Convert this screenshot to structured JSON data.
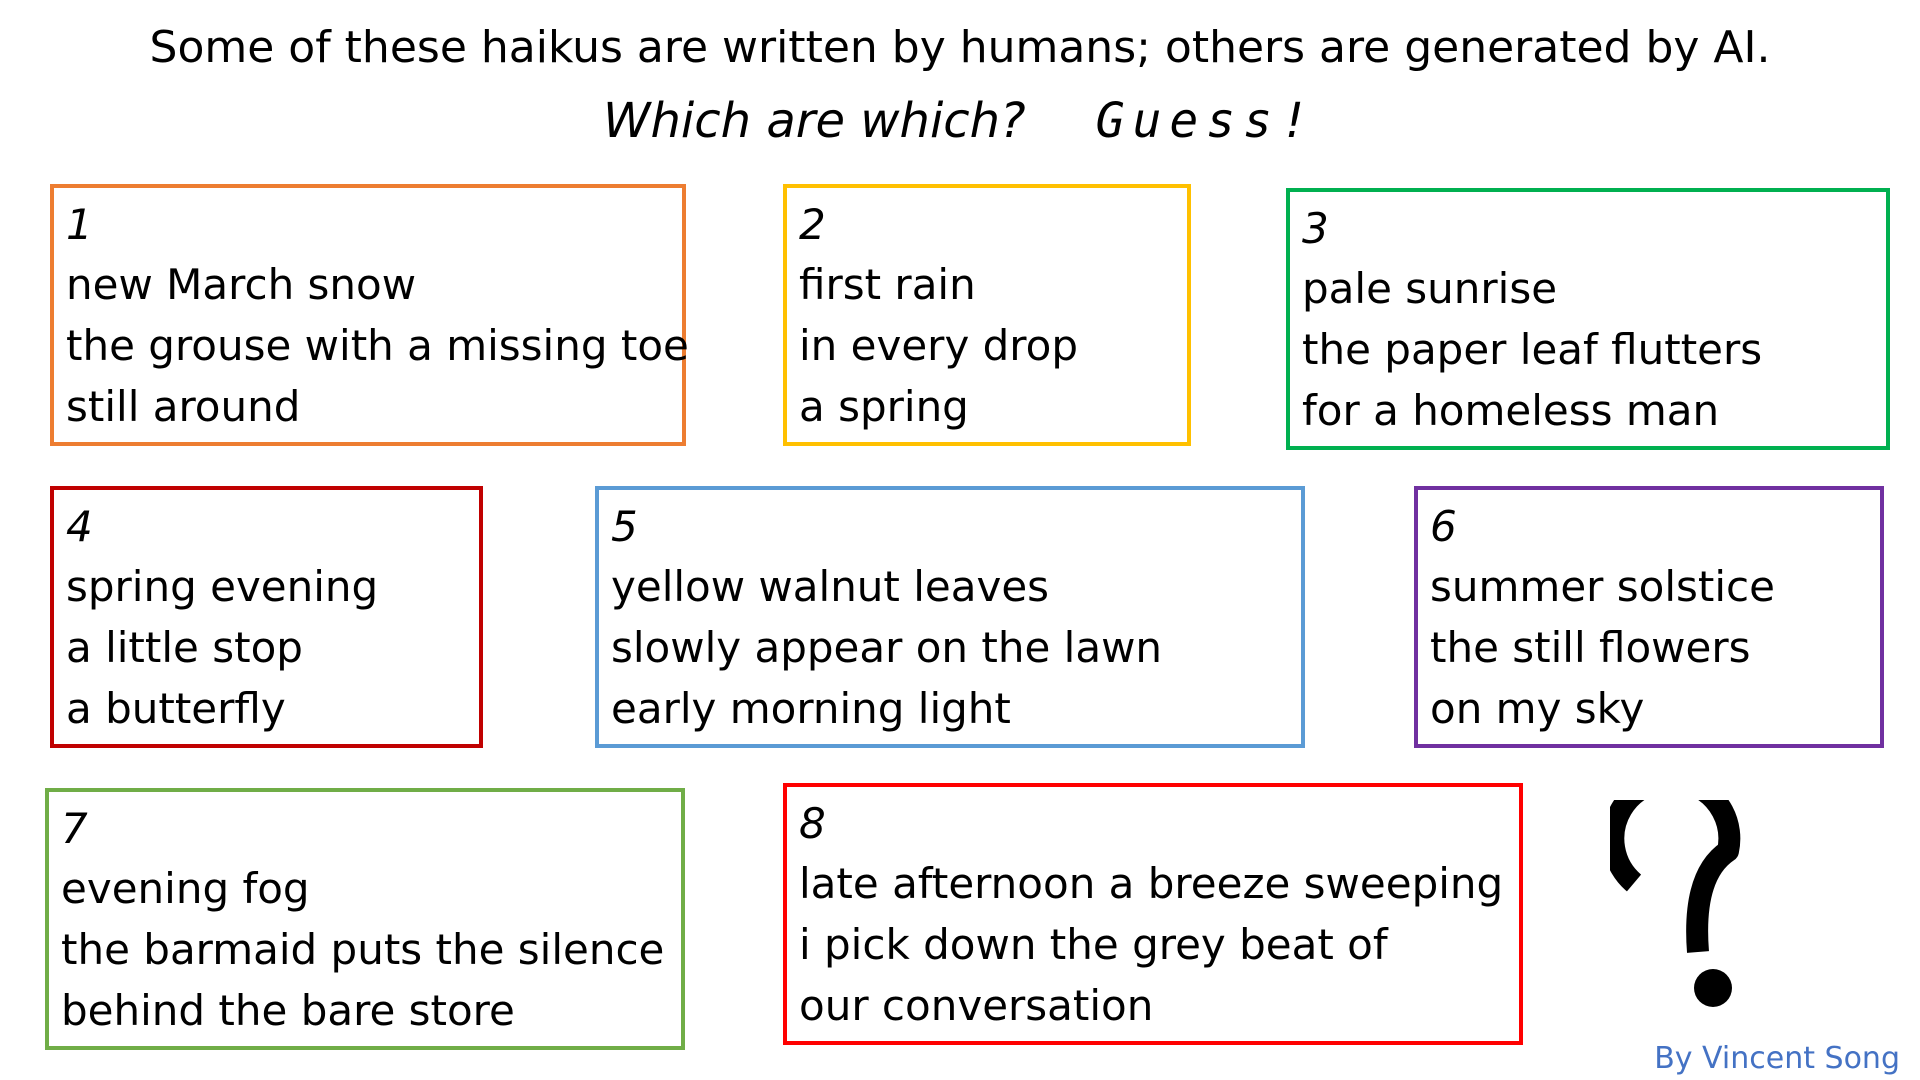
{
  "header": {
    "line1": "Some of these haikus are written by humans; others are generated by AI.",
    "question": "Which are which?",
    "guess": "Guess!"
  },
  "haikus": [
    {
      "number": "1",
      "lines": [
        "new March snow",
        "the grouse with a missing toe",
        "still around"
      ],
      "color": "#ED7D31"
    },
    {
      "number": "2",
      "lines": [
        "first rain",
        "in every drop",
        "a spring"
      ],
      "color": "#FFC000"
    },
    {
      "number": "3",
      "lines": [
        "pale sunrise",
        "the paper leaf flutters",
        "for a homeless man"
      ],
      "color": "#00B050"
    },
    {
      "number": "4",
      "lines": [
        "spring evening",
        "a little stop",
        "a butterfly"
      ],
      "color": "#C00000"
    },
    {
      "number": "5",
      "lines": [
        "yellow walnut leaves",
        "slowly appear on the lawn",
        "early morning light"
      ],
      "color": "#5B9BD5"
    },
    {
      "number": "6",
      "lines": [
        "summer solstice",
        "the still flowers",
        "on my sky"
      ],
      "color": "#7030A0"
    },
    {
      "number": "7",
      "lines": [
        "evening fog",
        "the barmaid puts the silence",
        "behind the bare store"
      ],
      "color": "#70AD47"
    },
    {
      "number": "8",
      "lines": [
        "late afternoon a breeze sweeping",
        "i pick down the grey beat of",
        "our conversation"
      ],
      "color": "#FF0000"
    }
  ],
  "decoration": {
    "icon": "question-mark-icon",
    "icon_color": "#000000"
  },
  "credit": {
    "text": "By Vincent Song",
    "color": "#4472C4"
  }
}
